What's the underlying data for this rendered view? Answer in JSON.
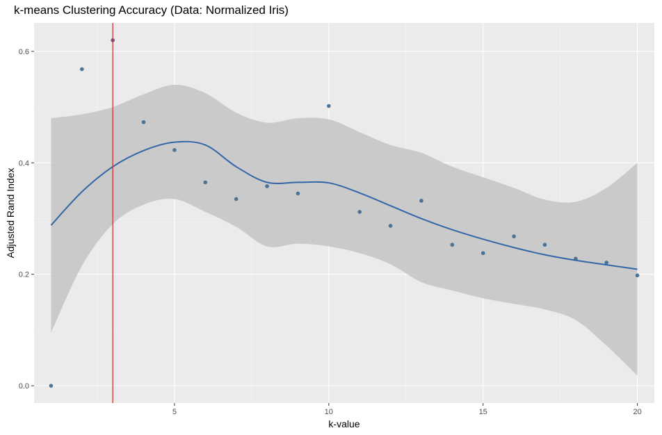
{
  "chart_data": {
    "type": "scatter",
    "title": "k-means Clustering Accuracy (Data: Normalized Iris)",
    "xlabel": "k-value",
    "ylabel": "Adjusted Rand Index",
    "xlim": [
      0.45,
      20.55
    ],
    "ylim": [
      -0.031,
      0.651
    ],
    "x_ticks": [
      5,
      10,
      15,
      20
    ],
    "x_tick_labels": [
      "5",
      "10",
      "15",
      "20"
    ],
    "y_ticks": [
      0.0,
      0.2,
      0.4,
      0.6
    ],
    "y_tick_labels": [
      "0.0",
      "0.2",
      "0.4",
      "0.6"
    ],
    "grid": true,
    "points": {
      "x": [
        1,
        2,
        3,
        4,
        5,
        6,
        7,
        8,
        9,
        10,
        11,
        12,
        13,
        14,
        15,
        16,
        17,
        18,
        19,
        20
      ],
      "y": [
        0.0,
        0.568,
        0.62,
        0.473,
        0.423,
        0.365,
        0.335,
        0.358,
        0.345,
        0.502,
        0.312,
        0.287,
        0.332,
        0.253,
        0.238,
        0.268,
        0.253,
        0.228,
        0.221,
        0.198
      ]
    },
    "smooth": {
      "x": [
        1,
        2,
        3,
        4,
        5,
        6,
        7,
        8,
        9,
        10,
        11,
        12,
        13,
        14,
        15,
        16,
        17,
        18,
        19,
        20
      ],
      "y": [
        0.288,
        0.348,
        0.393,
        0.422,
        0.437,
        0.432,
        0.393,
        0.365,
        0.365,
        0.364,
        0.346,
        0.323,
        0.3,
        0.28,
        0.263,
        0.248,
        0.235,
        0.225,
        0.217,
        0.209
      ],
      "upper": [
        0.48,
        0.487,
        0.5,
        0.523,
        0.54,
        0.525,
        0.49,
        0.472,
        0.48,
        0.478,
        0.455,
        0.432,
        0.418,
        0.393,
        0.374,
        0.355,
        0.334,
        0.33,
        0.355,
        0.4
      ],
      "lower": [
        0.095,
        0.215,
        0.29,
        0.325,
        0.335,
        0.312,
        0.285,
        0.25,
        0.255,
        0.25,
        0.238,
        0.218,
        0.186,
        0.171,
        0.157,
        0.147,
        0.137,
        0.118,
        0.072,
        0.018
      ]
    },
    "vline_x": 3,
    "colors": {
      "panel": "#ebebeb",
      "grid_major": "#ffffff",
      "grid_minor": "#f5f5f5",
      "point": "#3a6890",
      "point_highlight": "#7a4060",
      "line": "#3366a6",
      "ribbon": "#c4c4c4",
      "vline": "#d42020"
    }
  }
}
